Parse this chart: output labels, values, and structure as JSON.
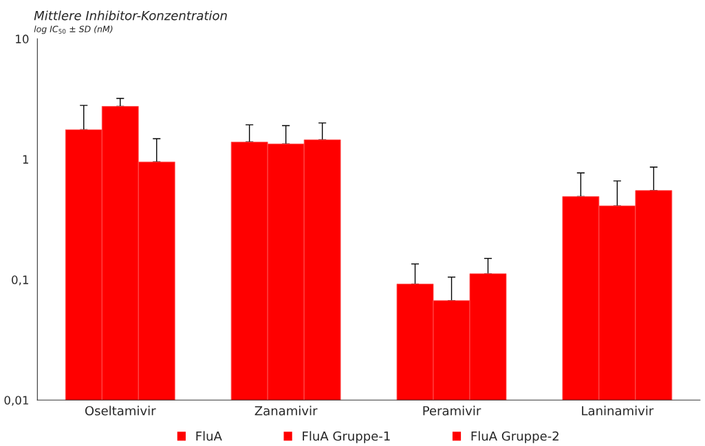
{
  "chart_data": {
    "type": "bar",
    "title": "Mittlere Inhibitor-Konzentration",
    "subtitle": "log IC$_{50}$ ± SD (nM)",
    "categories": [
      "Oseltamivir",
      "Zanamivir",
      "Peramivir",
      "Laninamivir"
    ],
    "series": [
      {
        "name": "FluA",
        "color": "#ff0000",
        "values": [
          1.76,
          1.39,
          0.092,
          0.49
        ],
        "errors": [
          [
            1.76,
            2.8
          ],
          [
            1.39,
            1.93
          ],
          [
            0.092,
            0.135
          ],
          [
            0.49,
            0.77
          ]
        ]
      },
      {
        "name": "FluA Gruppe-1",
        "color": "#ff0000",
        "values": [
          2.75,
          1.34,
          0.067,
          0.41
        ],
        "errors": [
          [
            2.75,
            3.2
          ],
          [
            1.34,
            1.9
          ],
          [
            0.067,
            0.105
          ],
          [
            0.41,
            0.66
          ]
        ]
      },
      {
        "name": "FluA Gruppe-2",
        "color": "#ff0000",
        "values": [
          0.95,
          1.45,
          0.112,
          0.55
        ],
        "errors": [
          [
            0.95,
            1.48
          ],
          [
            1.45,
            2.0
          ],
          [
            0.112,
            0.15
          ],
          [
            0.55,
            0.86
          ]
        ]
      }
    ],
    "log": "y",
    "ylim": [
      0.01,
      10
    ],
    "yticks": [
      {
        "value": 0.01,
        "label": "0,01"
      },
      {
        "value": 0.1,
        "label": "0,1"
      },
      {
        "value": 1,
        "label": "1"
      },
      {
        "value": 10,
        "label": "10"
      }
    ],
    "grid": false,
    "legend": "bottom"
  }
}
